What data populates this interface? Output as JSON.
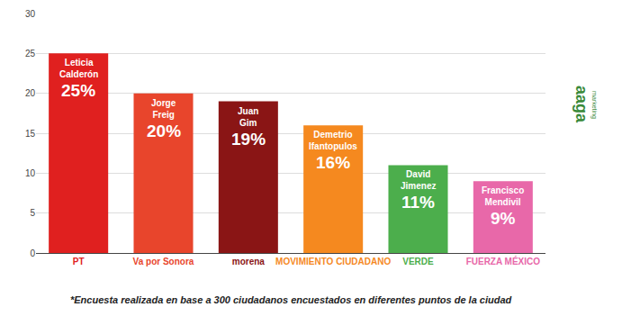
{
  "chart_data": {
    "type": "bar",
    "categories": [
      "PT",
      "Va por Sonora",
      "morena",
      "MOVIMIENTO CIUDADANO",
      "VERDE",
      "FUERZA MÉXICO"
    ],
    "candidates": [
      "Leticia Calderón",
      "Jorge Freig",
      "Juan Gim",
      "Demetrio Ifantopulos",
      "David Jimenez",
      "Francisco Mendivil"
    ],
    "values": [
      25,
      20,
      19,
      16,
      11,
      9
    ],
    "value_labels": [
      "25%",
      "20%",
      "19%",
      "16%",
      "11%",
      "9%"
    ],
    "colors": [
      "#e0201f",
      "#e8452c",
      "#8a1515",
      "#f5891f",
      "#4cae4c",
      "#e868a9"
    ],
    "ylim": [
      0,
      30
    ],
    "yticks": [
      0,
      5,
      10,
      15,
      20,
      25,
      30
    ],
    "grid": true,
    "data_labels": true,
    "note": "*Encuesta realizada en base a 300 ciudadanos encuestados en diferentes puntos de la ciudad",
    "brand": "aaga",
    "brand_subtitle": "marketing"
  }
}
